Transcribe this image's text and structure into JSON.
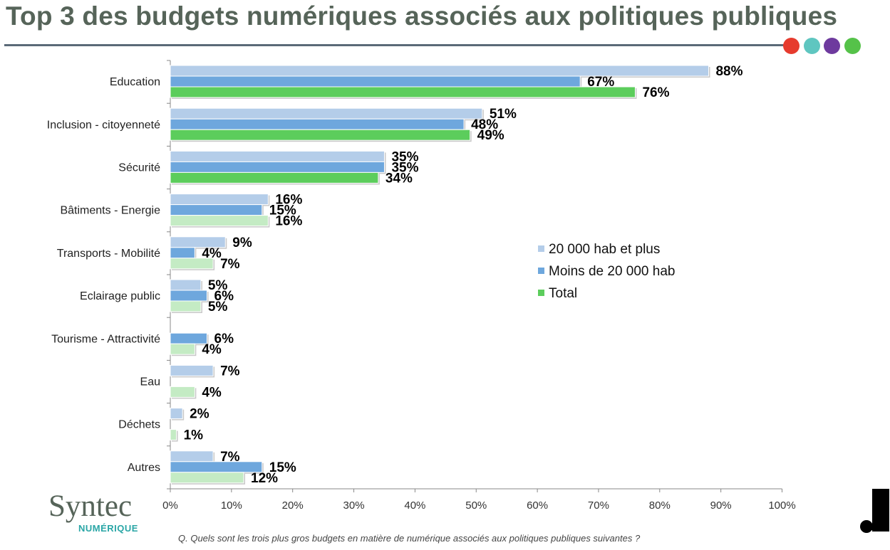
{
  "header": {
    "title": "Top 3 des budgets numériques associés aux politiques publiques",
    "dot_colors": [
      "#e63b2e",
      "#5fc6c0",
      "#6e3a9e",
      "#55c249"
    ]
  },
  "footer": {
    "question": "Q. Quels sont les trois plus gros budgets en matière de numérique associés aux politiques publiques suivantes ?",
    "logo_main": "Syntec",
    "logo_sub": "NUMÉRIQUE"
  },
  "chart_data": {
    "type": "bar",
    "orientation": "horizontal",
    "categories": [
      "Education",
      "Inclusion - citoyenneté",
      "Sécurité",
      "Bâtiments - Energie",
      "Transports - Mobilité",
      "Eclairage public",
      "Tourisme - Attractivité",
      "Eau",
      "Déchets",
      "Autres"
    ],
    "series": [
      {
        "name": "20 000 hab et plus",
        "color": "#b4cde9",
        "values": [
          88,
          51,
          35,
          16,
          9,
          5,
          null,
          7,
          2,
          7
        ],
        "labels": [
          "88%",
          "51%",
          "35%",
          "16%",
          "9%",
          "5%",
          "",
          "7%",
          "2%",
          "7%"
        ]
      },
      {
        "name": "Moins de 20 000 hab",
        "color": "#6ea7dd",
        "values": [
          67,
          48,
          35,
          15,
          4,
          6,
          6,
          null,
          null,
          15
        ],
        "labels": [
          "67%",
          "48%",
          "35%",
          "15%",
          "4%",
          "6%",
          "6%",
          "",
          "",
          "15%"
        ]
      },
      {
        "name": "Total",
        "color": "#5ccd5c",
        "light_color": "#c4ebc4",
        "values": [
          76,
          49,
          34,
          16,
          7,
          5,
          4,
          4,
          1,
          12
        ],
        "labels": [
          "76%",
          "49%",
          "34%",
          "16%",
          "7%",
          "5%",
          "4%",
          "4%",
          "1%",
          "12%"
        ],
        "highlighted": [
          true,
          true,
          true,
          false,
          false,
          false,
          false,
          false,
          false,
          false
        ]
      }
    ],
    "xlim": [
      0,
      100
    ],
    "xticks": [
      "0%",
      "10%",
      "20%",
      "30%",
      "40%",
      "50%",
      "60%",
      "70%",
      "80%",
      "90%",
      "100%"
    ],
    "legend": {
      "placement": "center-right",
      "items": [
        {
          "label": "20 000 hab et plus",
          "color": "#b4cde9"
        },
        {
          "label": "Moins de 20 000 hab",
          "color": "#6ea7dd"
        },
        {
          "label": "Total",
          "color": "#5ccd5c"
        }
      ]
    },
    "grid": false
  }
}
